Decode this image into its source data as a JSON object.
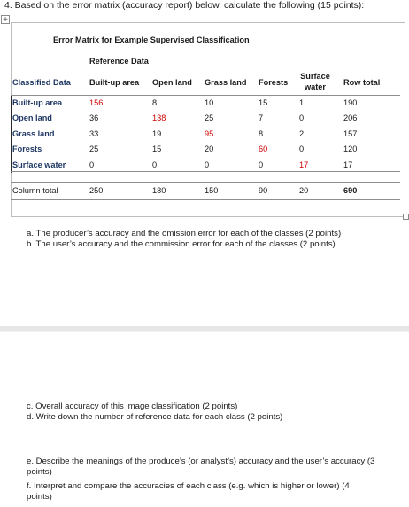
{
  "question": {
    "title": "4. Based on the error matrix (accuracy report) below, calculate the following (15 points):"
  },
  "matrix": {
    "title": "Error Matrix for Example Supervised Classification",
    "reference_label": "Reference Data",
    "corner_label": "Classified Data",
    "columns": [
      "Built-up area",
      "Open land",
      "Grass land",
      "Forests",
      "Surface water",
      "Row total"
    ],
    "rows": [
      {
        "label": "Built-up area",
        "values": [
          "156",
          "8",
          "10",
          "15",
          "1",
          "190"
        ]
      },
      {
        "label": "Open land",
        "values": [
          "36",
          "138",
          "25",
          "7",
          "0",
          "206"
        ]
      },
      {
        "label": "Grass land",
        "values": [
          "33",
          "19",
          "95",
          "8",
          "2",
          "157"
        ]
      },
      {
        "label": "Forests",
        "values": [
          "25",
          "15",
          "20",
          "60",
          "0",
          "120"
        ]
      },
      {
        "label": "Surface water",
        "values": [
          "0",
          "0",
          "0",
          "0",
          "17",
          "17"
        ]
      }
    ],
    "total_row": {
      "label": "Column total",
      "values": [
        "250",
        "180",
        "150",
        "90",
        "20",
        "690"
      ]
    },
    "diagonal_color": "#cc0000"
  },
  "questions_top": [
    "a. The producer’s accuracy and the omission error for each of the classes (2 points)",
    "b. The user’s accuracy and the commission error for each of the classes (2 points)"
  ],
  "questions_mid": [
    "c. Overall accuracy of this image classification (2 points)",
    "d. Write down the number of reference data for each class (2 points)"
  ],
  "questions_bottom": [
    "e. Describe the meanings of the produce’s (or analyst’s) accuracy and the user’s accuracy (3 points)",
    "f. Interpret and compare the accuracies of each class (e.g. which is higher or lower) (4 points)"
  ]
}
